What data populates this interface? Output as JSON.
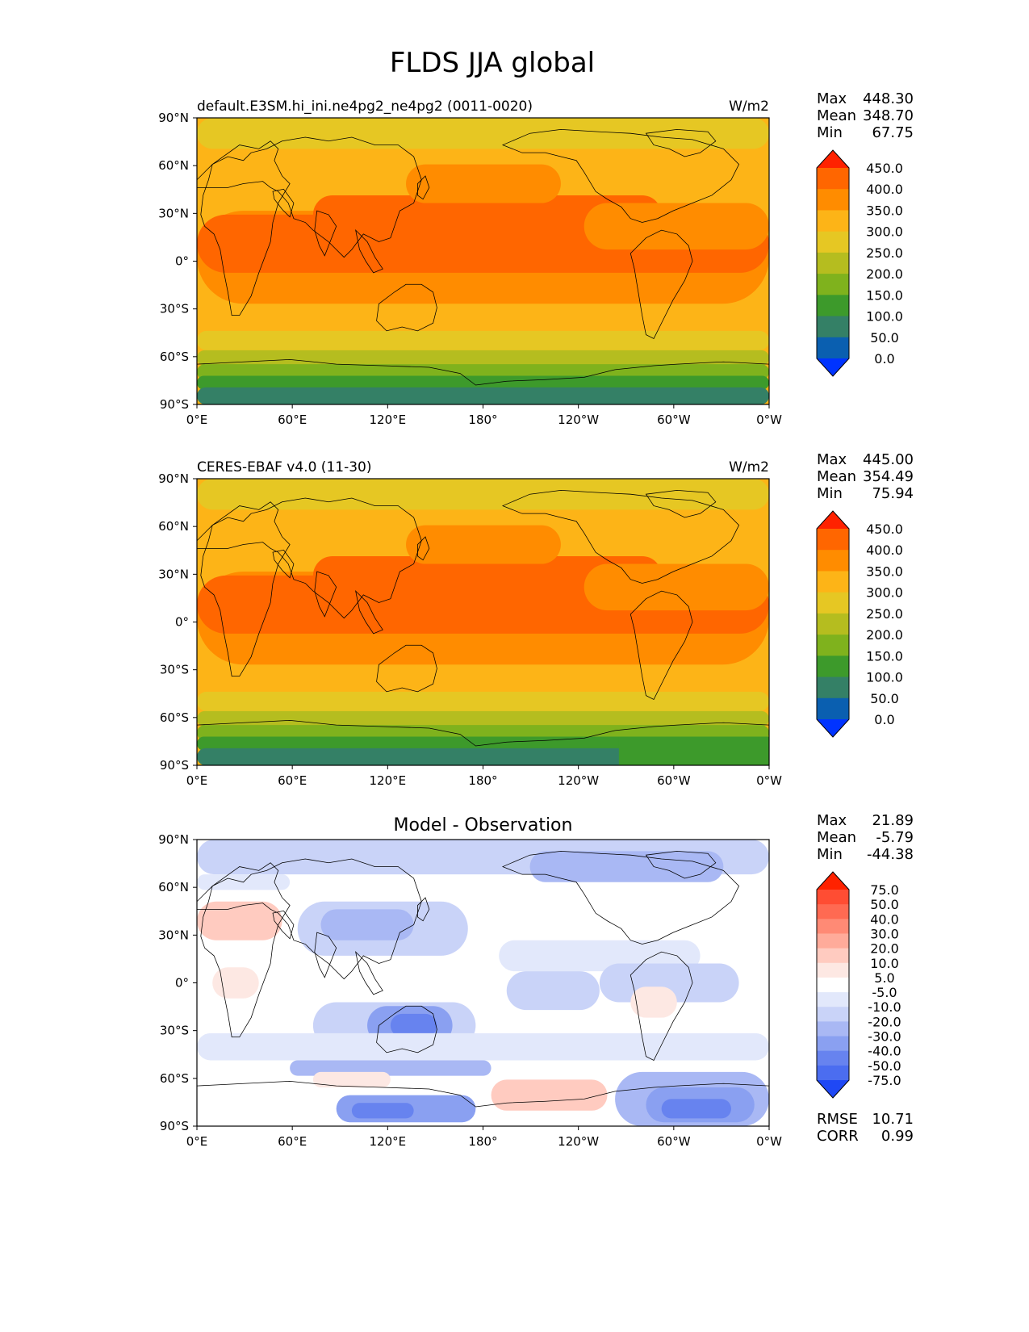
{
  "title": "FLDS JJA global",
  "panels": [
    {
      "id": "model",
      "left_title": "default.E3SM.hi_ini.ne4pg2_ne4pg2 (0011-0020)",
      "center_title": "",
      "units": "W/m2",
      "stats": [
        {
          "label": "Max",
          "value": "448.30"
        },
        {
          "label": "Mean",
          "value": "348.70"
        },
        {
          "label": "Min",
          "value": "67.75"
        }
      ],
      "colorbar": {
        "labels": [
          "450.0",
          "400.0",
          "350.0",
          "300.0",
          "250.0",
          "200.0",
          "150.0",
          "100.0",
          "50.0",
          "0.0"
        ],
        "colors": [
          "#ff2200",
          "#ff6600",
          "#ff8c00",
          "#fdb417",
          "#e6c723",
          "#b5bd1f",
          "#7fb21d",
          "#3d9a2b",
          "#348066",
          "#0a5fb0",
          "#0033ff"
        ]
      },
      "extra_stats": []
    },
    {
      "id": "obs",
      "left_title": "CERES-EBAF v4.0 (11-30)",
      "center_title": "",
      "units": "W/m2",
      "stats": [
        {
          "label": "Max",
          "value": "445.00"
        },
        {
          "label": "Mean",
          "value": "354.49"
        },
        {
          "label": "Min",
          "value": "75.94"
        }
      ],
      "colorbar": {
        "labels": [
          "450.0",
          "400.0",
          "350.0",
          "300.0",
          "250.0",
          "200.0",
          "150.0",
          "100.0",
          "50.0",
          "0.0"
        ],
        "colors": [
          "#ff2200",
          "#ff6600",
          "#ff8c00",
          "#fdb417",
          "#e6c723",
          "#b5bd1f",
          "#7fb21d",
          "#3d9a2b",
          "#348066",
          "#0a5fb0",
          "#0033ff"
        ]
      },
      "extra_stats": []
    },
    {
      "id": "diff",
      "left_title": "",
      "center_title": "Model - Observation",
      "units": "",
      "stats": [
        {
          "label": "Max",
          "value": "21.89"
        },
        {
          "label": "Mean",
          "value": "-5.79"
        },
        {
          "label": "Min",
          "value": "-44.38"
        }
      ],
      "colorbar": {
        "labels": [
          "75.0",
          "50.0",
          "40.0",
          "30.0",
          "20.0",
          "10.0",
          "5.0",
          "-5.0",
          "-10.0",
          "-20.0",
          "-30.0",
          "-40.0",
          "-50.0",
          "-75.0"
        ],
        "colors": [
          "#ff2200",
          "#ff4d33",
          "#ff6a52",
          "#ff8a75",
          "#ffab9a",
          "#ffcbc0",
          "#fde8e3",
          "#ffffff",
          "#e2e8fb",
          "#c9d3f8",
          "#a9b8f4",
          "#8aa0f1",
          "#6783ef",
          "#4b6df0",
          "#1f48f5"
        ]
      },
      "extra_stats": [
        {
          "label": "RMSE",
          "value": "10.71"
        },
        {
          "label": "CORR",
          "value": "0.99"
        }
      ]
    }
  ],
  "axes": {
    "lon_ticks": [
      "0°E",
      "60°E",
      "120°E",
      "180°",
      "120°W",
      "60°W",
      "0°W"
    ],
    "lat_ticks": [
      "90°N",
      "60°N",
      "30°N",
      "0°",
      "30°S",
      "60°S",
      "90°S"
    ]
  },
  "map_colors": {
    "model": [
      "#fdb417",
      "#e6c723",
      "#ff8c00",
      "#ff6600",
      "#b5bd1f",
      "#7fb21d",
      "#3d9a2b",
      "#348066"
    ],
    "obs": [
      "#fdb417",
      "#e6c723",
      "#ff8c00",
      "#ff6600",
      "#b5bd1f",
      "#7fb21d",
      "#3d9a2b",
      "#348066"
    ],
    "diff": [
      "#ffffff",
      "#e2e8fb",
      "#c9d3f8",
      "#a9b8f4",
      "#8aa0f1",
      "#6783ef",
      "#ffcbc0",
      "#fde8e3"
    ]
  }
}
